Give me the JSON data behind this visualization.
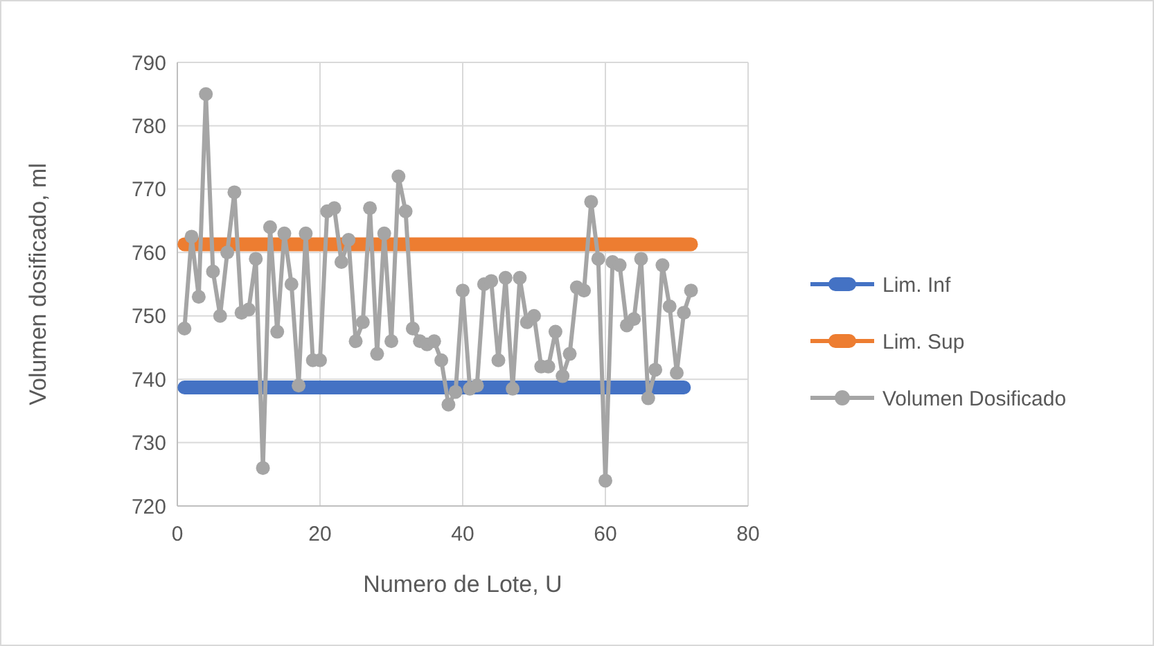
{
  "chart_data": {
    "type": "line",
    "xlabel": "Numero de Lote, U",
    "ylabel": "Volumen dosificado, ml",
    "xlim": [
      0,
      80
    ],
    "ylim": [
      720,
      790
    ],
    "xticks": [
      0,
      20,
      40,
      60,
      80
    ],
    "yticks": [
      720,
      730,
      740,
      750,
      760,
      770,
      780,
      790
    ],
    "grid": true,
    "legend": "right",
    "marker": "circle",
    "line_style": "solid",
    "series": [
      {
        "name": "Lim. Inf",
        "color": "#4472c4",
        "marker": "none",
        "x": [
          1,
          2,
          3,
          4,
          5,
          6,
          7,
          8,
          9,
          10,
          11,
          12,
          13,
          14,
          15,
          16,
          17,
          18,
          19,
          20,
          21,
          22,
          23,
          24,
          25,
          26,
          27,
          28,
          29,
          30,
          31,
          32,
          33,
          34,
          35,
          36,
          37,
          38,
          39,
          40,
          41,
          42,
          43,
          44,
          45,
          46,
          47,
          48,
          49,
          50,
          51,
          52,
          53,
          54,
          55,
          56,
          57,
          58,
          59,
          60,
          61,
          62,
          63,
          64,
          65,
          66,
          67,
          68,
          69,
          70,
          71
        ],
        "values": [
          738.7,
          738.7,
          738.7,
          738.7,
          738.7,
          738.7,
          738.7,
          738.7,
          738.7,
          738.7,
          738.7,
          738.7,
          738.7,
          738.7,
          738.7,
          738.7,
          738.7,
          738.7,
          738.7,
          738.7,
          738.7,
          738.7,
          738.7,
          738.7,
          738.7,
          738.7,
          738.7,
          738.7,
          738.7,
          738.7,
          738.7,
          738.7,
          738.7,
          738.7,
          738.7,
          738.7,
          738.7,
          738.7,
          738.7,
          738.7,
          738.7,
          738.7,
          738.7,
          738.7,
          738.7,
          738.7,
          738.7,
          738.7,
          738.7,
          738.7,
          738.7,
          738.7,
          738.7,
          738.7,
          738.7,
          738.7,
          738.7,
          738.7,
          738.7,
          738.7,
          738.7,
          738.7,
          738.7,
          738.7,
          738.7,
          738.7,
          738.7,
          738.7,
          738.7,
          738.7,
          738.7
        ]
      },
      {
        "name": "Lim. Sup",
        "color": "#ed7d31",
        "marker": "none",
        "x": [
          1,
          2,
          3,
          4,
          5,
          6,
          7,
          8,
          9,
          10,
          11,
          12,
          13,
          14,
          15,
          16,
          17,
          18,
          19,
          20,
          21,
          22,
          23,
          24,
          25,
          26,
          27,
          28,
          29,
          30,
          31,
          32,
          33,
          34,
          35,
          36,
          37,
          38,
          39,
          40,
          41,
          42,
          43,
          44,
          45,
          46,
          47,
          48,
          49,
          50,
          51,
          52,
          53,
          54,
          55,
          56,
          57,
          58,
          59,
          60,
          61,
          62,
          63,
          64,
          65,
          66,
          67,
          68,
          69,
          70,
          71,
          72
        ],
        "values": [
          761.3,
          761.3,
          761.3,
          761.3,
          761.3,
          761.3,
          761.3,
          761.3,
          761.3,
          761.3,
          761.3,
          761.3,
          761.3,
          761.3,
          761.3,
          761.3,
          761.3,
          761.3,
          761.3,
          761.3,
          761.3,
          761.3,
          761.3,
          761.3,
          761.3,
          761.3,
          761.3,
          761.3,
          761.3,
          761.3,
          761.3,
          761.3,
          761.3,
          761.3,
          761.3,
          761.3,
          761.3,
          761.3,
          761.3,
          761.3,
          761.3,
          761.3,
          761.3,
          761.3,
          761.3,
          761.3,
          761.3,
          761.3,
          761.3,
          761.3,
          761.3,
          761.3,
          761.3,
          761.3,
          761.3,
          761.3,
          761.3,
          761.3,
          761.3,
          761.3,
          761.3,
          761.3,
          761.3,
          761.3,
          761.3,
          761.3,
          761.3,
          761.3,
          761.3,
          761.3,
          761.3,
          761.3
        ]
      },
      {
        "name": "Volumen Dosificado",
        "color": "#a5a5a5",
        "x": [
          1,
          2,
          3,
          4,
          5,
          6,
          7,
          8,
          9,
          10,
          11,
          12,
          13,
          14,
          15,
          16,
          17,
          18,
          19,
          20,
          21,
          22,
          23,
          24,
          25,
          26,
          27,
          28,
          29,
          30,
          31,
          32,
          33,
          34,
          35,
          36,
          37,
          38,
          39,
          40,
          41,
          42,
          43,
          44,
          45,
          46,
          47,
          48,
          49,
          50,
          51,
          52,
          53,
          54,
          55,
          56,
          57,
          58,
          59,
          60,
          61,
          62,
          63,
          64,
          65,
          66,
          67,
          68,
          69,
          70,
          71,
          72
        ],
        "values": [
          748,
          762.5,
          753,
          785,
          757,
          750,
          760,
          769.5,
          750.5,
          751,
          759,
          726,
          764,
          747.5,
          763,
          755,
          739,
          763,
          743,
          743,
          766.5,
          767,
          758.5,
          762,
          746,
          749,
          767,
          744,
          763,
          746,
          772,
          766.5,
          748,
          746,
          745.5,
          746,
          743,
          736,
          738,
          754,
          738.5,
          739,
          755,
          755.5,
          743,
          756,
          738.5,
          756,
          749,
          750,
          742,
          742,
          747.5,
          740.5,
          744,
          754.5,
          754,
          768,
          759,
          724,
          758.5,
          758,
          748.5,
          749.5,
          759,
          737,
          741.5,
          758,
          751.5,
          741,
          750.5,
          754
        ]
      }
    ]
  }
}
